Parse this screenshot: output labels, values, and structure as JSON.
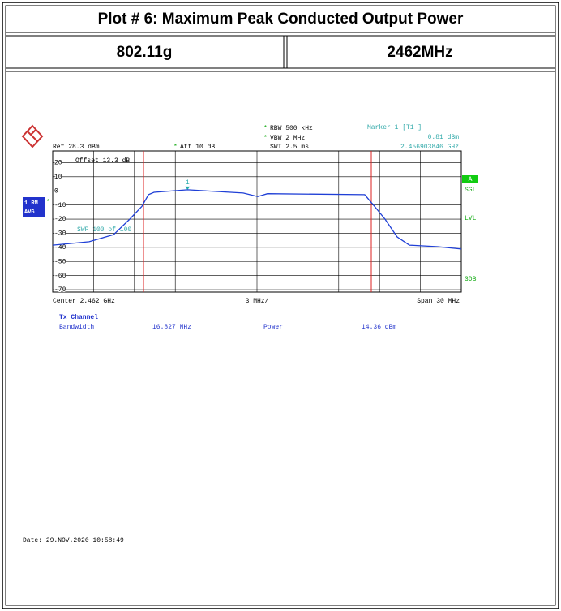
{
  "header": {
    "title": "Plot # 6: Maximum Peak Conducted Output Power",
    "mode": "802.11g",
    "frequency": "2462MHz"
  },
  "screen": {
    "star": "*",
    "rbw": "RBW 500 kHz",
    "vbw": "VBW 2 MHz",
    "swt": "SWT 2.5 ms",
    "marker_title": "Marker 1 [T1 ]",
    "marker_level": "0.81 dBm",
    "marker_freq": "2.456903846 GHz",
    "ref": "Ref  28.3 dBm",
    "att": "Att  10 dB",
    "offset": "Offset  13.3 dB",
    "trace_mode": "1 RM",
    "detector": "AVG",
    "sweep": "SWP  100 of  100",
    "side_a": "A",
    "side_sgl": "SGL",
    "side_lvl": "LVL",
    "side_3db": "3DB",
    "center": "Center  2.462 GHz",
    "per_div": "3 MHz/",
    "span": "Span  30 MHz",
    "tx_channel": "Tx Channel",
    "bandwidth_label": "Bandwidth",
    "bandwidth_value": "16.827 MHz",
    "power_label": "Power",
    "power_value": "14.36 dBm",
    "date": "Date: 29.NOV.2020  10:58:49"
  },
  "chart_data": {
    "type": "line",
    "marker_label": "1",
    "x": [
      2.447,
      2.44968,
      2.45147,
      2.45266,
      2.45355,
      2.45403,
      2.45444,
      2.4569,
      2.46099,
      2.46206,
      2.46277,
      2.46991,
      2.47051,
      2.4714,
      2.47229,
      2.47319,
      2.47527,
      2.477
    ],
    "series": [
      {
        "color": "#1f3fd6",
        "values": [
          -38.4,
          -36,
          -31,
          -20,
          -11,
          -2.7,
          -1,
          0.8,
          -1.5,
          -4,
          -2,
          -2.7,
          -9.6,
          -20,
          -32.6,
          -38.4,
          -39.5,
          -41.2
        ]
      }
    ],
    "xlim": [
      2.447,
      2.477
    ],
    "ylim": [
      -71.7,
      28.3
    ],
    "yticks": [
      20,
      10,
      0,
      -10,
      -20,
      -30,
      -40,
      -50,
      -60,
      -70
    ],
    "grid": true
  }
}
